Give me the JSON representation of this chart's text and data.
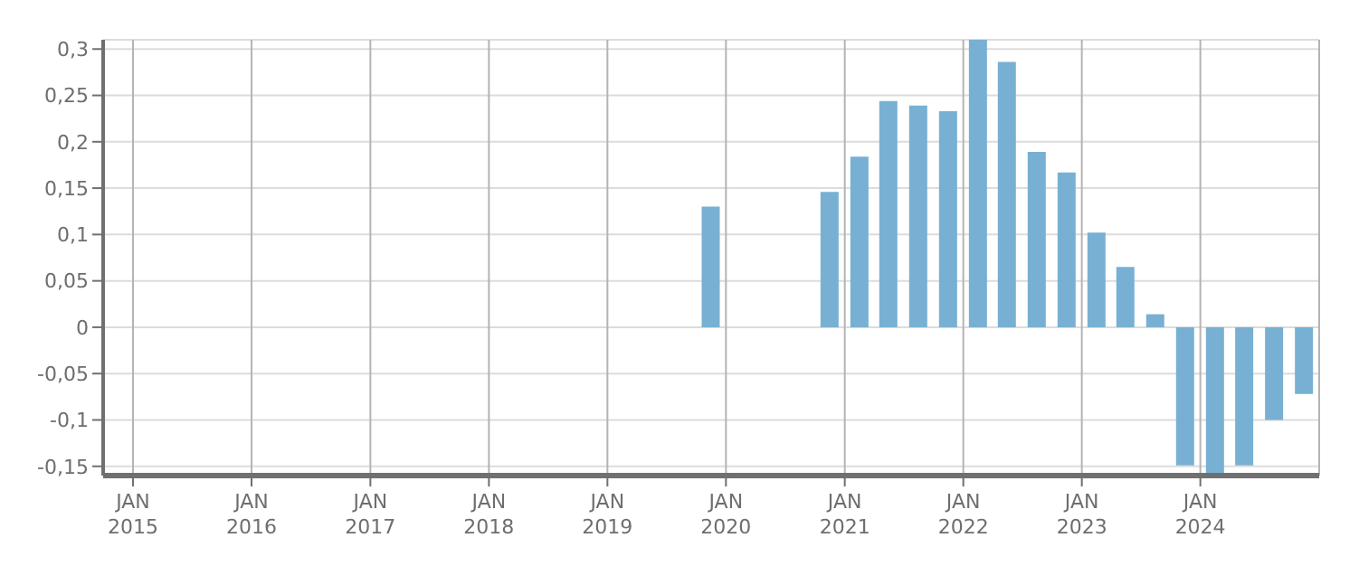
{
  "chart_data": {
    "type": "bar",
    "x": [
      "2019-11-15",
      "2020-11-15",
      "2021-02-15",
      "2021-05-15",
      "2021-08-15",
      "2021-11-15",
      "2022-02-15",
      "2022-05-15",
      "2022-08-15",
      "2022-11-15",
      "2023-02-15",
      "2023-05-15",
      "2023-08-15",
      "2023-11-15",
      "2024-02-15",
      "2024-05-15",
      "2024-08-15",
      "2024-11-15"
    ],
    "values": [
      0.13,
      0.146,
      0.184,
      0.244,
      0.239,
      0.233,
      0.31,
      0.286,
      0.189,
      0.167,
      0.102,
      0.065,
      0.014,
      -0.149,
      -0.16,
      -0.149,
      -0.1,
      -0.072
    ],
    "color": "#78b0d3",
    "xlim": [
      "2014-10-01",
      "2025-01-01"
    ],
    "xticks": [
      {
        "value": "2015-01-01",
        "label": "JAN\n2015"
      },
      {
        "value": "2016-01-01",
        "label": "JAN\n2016"
      },
      {
        "value": "2017-01-01",
        "label": "JAN\n2017"
      },
      {
        "value": "2018-01-01",
        "label": "JAN\n2018"
      },
      {
        "value": "2019-01-01",
        "label": "JAN\n2019"
      },
      {
        "value": "2020-01-01",
        "label": "JAN\n2020"
      },
      {
        "value": "2021-01-01",
        "label": "JAN\n2021"
      },
      {
        "value": "2022-01-01",
        "label": "JAN\n2022"
      },
      {
        "value": "2023-01-01",
        "label": "JAN\n2023"
      },
      {
        "value": "2024-01-01",
        "label": "JAN\n2024"
      }
    ],
    "ylim": [
      -0.16,
      0.31
    ],
    "yticks": [
      {
        "value": -0.15,
        "label": "-0,15"
      },
      {
        "value": -0.1,
        "label": "-0,1"
      },
      {
        "value": -0.05,
        "label": "-0,05"
      },
      {
        "value": 0,
        "label": "0"
      },
      {
        "value": 0.05,
        "label": "0,05"
      },
      {
        "value": 0.1,
        "label": "0,1"
      },
      {
        "value": 0.15,
        "label": "0,15"
      },
      {
        "value": 0.2,
        "label": "0,2"
      },
      {
        "value": 0.25,
        "label": "0,25"
      },
      {
        "value": 0.3,
        "label": "0,3"
      }
    ],
    "grid": true
  }
}
